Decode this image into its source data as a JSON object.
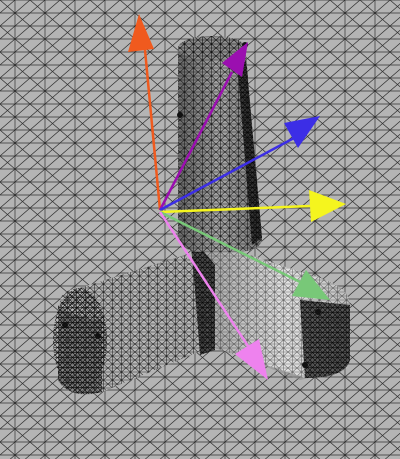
{
  "scene": {
    "background_color": "#b4b4b4",
    "mesh_line_color": "#1a1a1a",
    "part_highlight_color": "#d9d9d9",
    "arrows": [
      {
        "name": "orange-arrow",
        "color": "#f05a1e"
      },
      {
        "name": "purple-arrow",
        "color": "#9b0fb0"
      },
      {
        "name": "blue-arrow",
        "color": "#3c2ee6"
      },
      {
        "name": "yellow-arrow",
        "color": "#f5f51e"
      },
      {
        "name": "green-arrow",
        "color": "#78c878"
      },
      {
        "name": "pink-arrow",
        "color": "#ee82ee"
      }
    ]
  }
}
